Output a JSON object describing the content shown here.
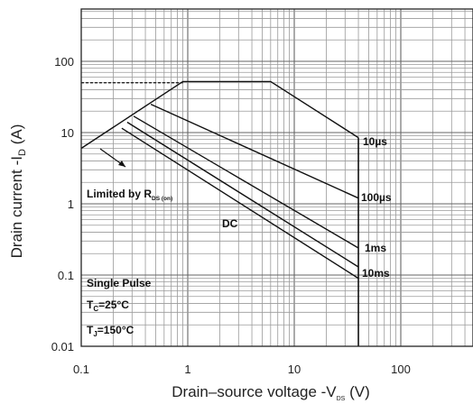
{
  "chart_data": {
    "type": "line",
    "x_scale": "log",
    "y_scale": "log",
    "xlim": [
      0.1,
      500
    ],
    "ylim": [
      0.01,
      500
    ],
    "grid": true,
    "xlabel": "Drain–source voltage -V",
    "xlabel_sub": "DS",
    "xlabel_unit": " (V)",
    "ylabel": "Drain current -I",
    "ylabel_sub": "D",
    "ylabel_unit": " (A)",
    "x_ticks": [
      {
        "value": 0.1,
        "label": "0.1"
      },
      {
        "value": 1,
        "label": "1"
      },
      {
        "value": 10,
        "label": "10"
      },
      {
        "value": 100,
        "label": "100"
      }
    ],
    "y_ticks": [
      {
        "value": 0.01,
        "label": "0.01"
      },
      {
        "value": 0.1,
        "label": "0.1"
      },
      {
        "value": 1,
        "label": "1"
      },
      {
        "value": 10,
        "label": "10"
      },
      {
        "value": 100,
        "label": "100"
      }
    ],
    "series": [
      {
        "name": "10µs",
        "points": [
          [
            0.1,
            6
          ],
          [
            0.9,
            52
          ],
          [
            6,
            52
          ],
          [
            40,
            8.5
          ]
        ]
      },
      {
        "name": "100µs",
        "points": [
          [
            0.45,
            25
          ],
          [
            40,
            1.2
          ]
        ]
      },
      {
        "name": "1ms",
        "points": [
          [
            0.31,
            17
          ],
          [
            40,
            0.24
          ]
        ]
      },
      {
        "name": "10ms",
        "points": [
          [
            0.27,
            14
          ],
          [
            40,
            0.13
          ]
        ]
      },
      {
        "name": "DC",
        "points": [
          [
            0.24,
            11.5
          ],
          [
            40,
            0.09
          ]
        ]
      }
    ],
    "limit_line": {
      "points": [
        [
          0.1,
          50
        ],
        [
          0.9,
          50
        ]
      ],
      "style": "dashed"
    },
    "voltage_limit": {
      "x": 40,
      "y_range": [
        0.01,
        8.5
      ]
    },
    "annotations": {
      "rds_label": "Limited by R",
      "rds_sub": "DS (on)",
      "dc_label": "DC",
      "pulse_title": "Single Pulse",
      "tc_label": "T",
      "tc_sub": "C",
      "tc_value": "=25°C",
      "tj_label": "T",
      "tj_sub": "J",
      "tj_value": "=150°C"
    },
    "series_labels": [
      "10µs",
      "100µs",
      "1ms",
      "10ms"
    ]
  }
}
